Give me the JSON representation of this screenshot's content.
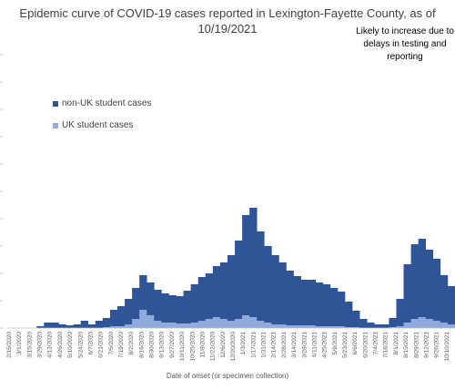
{
  "chart_data": {
    "type": "bar",
    "title": "Epidemic curve of COVID-19 cases reported in Lexington-Fayette County, as of 10/19/2021",
    "xlabel": "Date of onset (or specimen collection)",
    "ylabel": "",
    "annotation": "Likely to increase due to delays in testing and reporting",
    "legend_placement": "left",
    "stacked": true,
    "colors": {
      "non_uk": "#2F5597",
      "uk": "#8FAADC"
    },
    "series": [
      {
        "name": "non-UK student cases",
        "values": [
          0,
          0,
          0,
          0,
          2,
          6,
          6,
          4,
          3,
          4,
          8,
          4,
          8,
          10,
          18,
          22,
          28,
          34,
          38,
          36,
          34,
          32,
          30,
          30,
          36,
          42,
          48,
          50,
          56,
          62,
          72,
          86,
          110,
          120,
          98,
          84,
          76,
          68,
          60,
          54,
          50,
          50,
          48,
          46,
          42,
          38,
          28,
          18,
          10,
          6,
          4,
          4,
          10,
          30,
          64,
          82,
          86,
          76,
          68,
          52,
          42
        ]
      },
      {
        "name": "UK student cases",
        "values": [
          0,
          0,
          0,
          0,
          0,
          0,
          0,
          0,
          0,
          0,
          0,
          0,
          0,
          1,
          2,
          2,
          4,
          10,
          20,
          14,
          8,
          6,
          6,
          5,
          5,
          6,
          8,
          10,
          12,
          10,
          8,
          10,
          14,
          12,
          8,
          6,
          4,
          4,
          3,
          3,
          3,
          3,
          2,
          2,
          2,
          2,
          1,
          1,
          0,
          0,
          0,
          0,
          1,
          2,
          6,
          10,
          12,
          10,
          8,
          6,
          4
        ]
      }
    ],
    "x_tick_labels": [
      "2/15/2020",
      "3/1/2020",
      "3/15/2020",
      "3/29/2020",
      "4/12/2020",
      "4/26/2020",
      "5/10/2020",
      "5/24/2020",
      "6/7/2020",
      "6/21/2020",
      "7/5/2020",
      "7/19/2020",
      "8/2/2020",
      "8/16/2020",
      "8/30/2020",
      "9/13/2020",
      "9/27/2020",
      "10/11/2020",
      "10/25/2020",
      "11/8/2020",
      "11/22/2020",
      "12/6/2020",
      "12/20/2020",
      "1/3/2021",
      "1/17/2021",
      "1/31/2021",
      "2/14/2021",
      "2/28/2021",
      "3/14/2021",
      "3/28/2021",
      "4/11/2021",
      "4/25/2021",
      "5/9/2021",
      "5/23/2021",
      "6/6/2021",
      "6/20/2021",
      "7/4/2021",
      "7/18/2021",
      "8/1/2021",
      "8/15/2021",
      "8/29/2021",
      "9/12/2021",
      "9/26/2021",
      "10/10/2021"
    ],
    "ylim": [
      0,
      300
    ],
    "grid": false
  }
}
